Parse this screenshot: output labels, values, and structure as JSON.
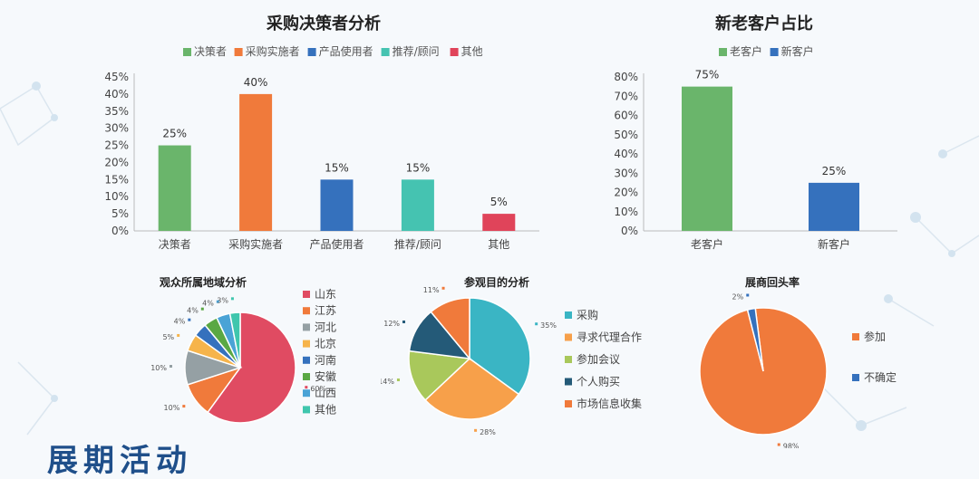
{
  "footer_heading": "展期活动",
  "charts": {
    "decision": {
      "title": "采购决策者分析",
      "type": "bar",
      "categories": [
        "决策者",
        "采购实施者",
        "产品使用者",
        "推荐/顾问",
        "其他"
      ],
      "values": [
        25,
        40,
        15,
        15,
        5
      ],
      "value_labels": [
        "25%",
        "40%",
        "15%",
        "15%",
        "5%"
      ],
      "colors": [
        "#6ab56b",
        "#f07a3b",
        "#3571bd",
        "#45c3b1",
        "#e0445a"
      ],
      "legend": [
        "决策者",
        "采购实施者",
        "产品使用者",
        "推荐/顾问",
        "其他"
      ],
      "yticks": [
        "0%",
        "5%",
        "10%",
        "15%",
        "20%",
        "25%",
        "30%",
        "35%",
        "40%",
        "45%"
      ],
      "ylim": [
        0,
        45
      ]
    },
    "customers": {
      "title": "新老客户占比",
      "type": "bar",
      "categories": [
        "老客户",
        "新客户"
      ],
      "values": [
        75,
        25
      ],
      "value_labels": [
        "75%",
        "25%"
      ],
      "colors": [
        "#6ab56b",
        "#3571bd"
      ],
      "legend": [
        "老客户",
        "新客户"
      ],
      "yticks": [
        "0%",
        "10%",
        "20%",
        "30%",
        "40%",
        "50%",
        "60%",
        "70%",
        "80%"
      ],
      "ylim": [
        0,
        80
      ]
    },
    "region": {
      "title": "观众所属地域分析",
      "type": "pie",
      "labels": [
        "山东",
        "江苏",
        "河北",
        "北京",
        "河南",
        "安徽",
        "山西",
        "其他"
      ],
      "values": [
        60,
        10,
        10,
        5,
        4,
        4,
        4,
        3
      ],
      "value_labels": [
        "60%",
        "10%",
        "10%",
        "5%",
        "4%",
        "4%",
        "4%",
        "3%"
      ],
      "colors": [
        "#e04b62",
        "#f07a3b",
        "#95a0a4",
        "#f6b44b",
        "#3571bd",
        "#5aa844",
        "#4aa3d6",
        "#3fc6ad"
      ]
    },
    "purpose": {
      "title": "参观目的分析",
      "type": "pie",
      "labels": [
        "采购",
        "寻求代理合作",
        "参加会议",
        "个人购买",
        "市场信息收集"
      ],
      "values": [
        35,
        28,
        14,
        12,
        11
      ],
      "value_labels": [
        "35%",
        "28%",
        "14%",
        "12%",
        "11%"
      ],
      "colors": [
        "#3ab5c4",
        "#f7a04a",
        "#a9c85b",
        "#245a78",
        "#f07a3b"
      ]
    },
    "exhibitor": {
      "title": "展商回头率",
      "type": "pie",
      "labels": [
        "参加",
        "不确定"
      ],
      "values": [
        98,
        2
      ],
      "value_labels": [
        "98%",
        "2%"
      ],
      "colors": [
        "#f07a3b",
        "#3571bd"
      ]
    }
  }
}
